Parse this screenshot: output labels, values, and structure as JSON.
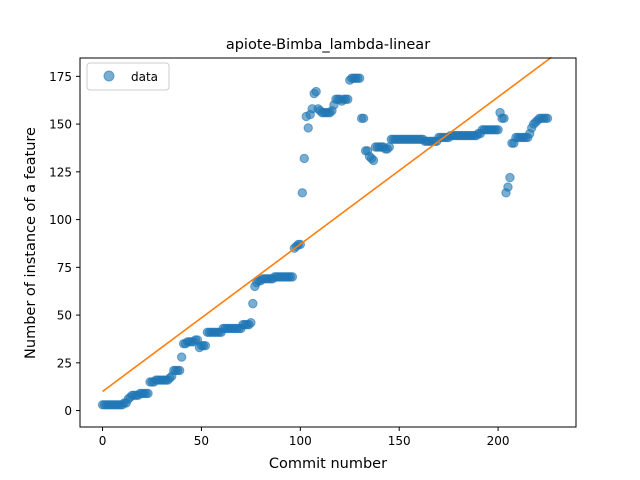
{
  "chart_data": {
    "type": "scatter",
    "title": "apiote-Bimba_lambda-linear",
    "xlabel": "Commit number",
    "ylabel": "Number of instance of a feature",
    "xlim": [
      -11.4,
      239.4
    ],
    "ylim": [
      -8.6,
      184.6
    ],
    "xticks": [
      0,
      50,
      100,
      150,
      200
    ],
    "yticks": [
      0,
      25,
      50,
      75,
      100,
      125,
      150,
      175
    ],
    "grid": false,
    "legend_position": "upper-left",
    "legend": [
      {
        "label": "data",
        "marker": "circle",
        "color": "#1f77b4"
      }
    ],
    "series": [
      {
        "name": "data",
        "kind": "scatter",
        "color": "#1f77b4",
        "alpha": 0.6,
        "points": [
          [
            0,
            3
          ],
          [
            1,
            3
          ],
          [
            2,
            3
          ],
          [
            3,
            3
          ],
          [
            4,
            3
          ],
          [
            5,
            3
          ],
          [
            6,
            3
          ],
          [
            7,
            3
          ],
          [
            8,
            3
          ],
          [
            9,
            3
          ],
          [
            10,
            3
          ],
          [
            11,
            4
          ],
          [
            12,
            4
          ],
          [
            13,
            6
          ],
          [
            14,
            7
          ],
          [
            15,
            8
          ],
          [
            16,
            8
          ],
          [
            17,
            8
          ],
          [
            18,
            8
          ],
          [
            19,
            9
          ],
          [
            20,
            9
          ],
          [
            21,
            9
          ],
          [
            22,
            9
          ],
          [
            23,
            9
          ],
          [
            24,
            15
          ],
          [
            25,
            15
          ],
          [
            26,
            15
          ],
          [
            27,
            16
          ],
          [
            28,
            16
          ],
          [
            29,
            16
          ],
          [
            30,
            16
          ],
          [
            31,
            16
          ],
          [
            32,
            16
          ],
          [
            33,
            16
          ],
          [
            34,
            17
          ],
          [
            35,
            18
          ],
          [
            36,
            21
          ],
          [
            37,
            21
          ],
          [
            38,
            21
          ],
          [
            39,
            21
          ],
          [
            40,
            28
          ],
          [
            41,
            35
          ],
          [
            42,
            35
          ],
          [
            43,
            36
          ],
          [
            44,
            36
          ],
          [
            45,
            36
          ],
          [
            46,
            36
          ],
          [
            47,
            37
          ],
          [
            48,
            37
          ],
          [
            49,
            33
          ],
          [
            50,
            34
          ],
          [
            51,
            34
          ],
          [
            52,
            34
          ],
          [
            53,
            41
          ],
          [
            54,
            41
          ],
          [
            55,
            41
          ],
          [
            56,
            41
          ],
          [
            57,
            41
          ],
          [
            58,
            41
          ],
          [
            59,
            41
          ],
          [
            60,
            41
          ],
          [
            61,
            43
          ],
          [
            62,
            43
          ],
          [
            63,
            43
          ],
          [
            64,
            43
          ],
          [
            65,
            43
          ],
          [
            66,
            43
          ],
          [
            67,
            43
          ],
          [
            68,
            43
          ],
          [
            69,
            43
          ],
          [
            70,
            43
          ],
          [
            71,
            45
          ],
          [
            72,
            45
          ],
          [
            73,
            45
          ],
          [
            74,
            45
          ],
          [
            75,
            46
          ],
          [
            76,
            56
          ],
          [
            77,
            65
          ],
          [
            78,
            67
          ],
          [
            79,
            68
          ],
          [
            80,
            68
          ],
          [
            81,
            69
          ],
          [
            82,
            69
          ],
          [
            83,
            69
          ],
          [
            84,
            69
          ],
          [
            85,
            69
          ],
          [
            86,
            69
          ],
          [
            87,
            70
          ],
          [
            88,
            70
          ],
          [
            89,
            70
          ],
          [
            90,
            70
          ],
          [
            91,
            70
          ],
          [
            92,
            70
          ],
          [
            93,
            70
          ],
          [
            94,
            70
          ],
          [
            95,
            70
          ],
          [
            96,
            70
          ],
          [
            97,
            85
          ],
          [
            98,
            86
          ],
          [
            99,
            87
          ],
          [
            100,
            87
          ],
          [
            101,
            114
          ],
          [
            102,
            132
          ],
          [
            103,
            154
          ],
          [
            104,
            148
          ],
          [
            105,
            155
          ],
          [
            106,
            158
          ],
          [
            107,
            166
          ],
          [
            108,
            167
          ],
          [
            109,
            158
          ],
          [
            110,
            157
          ],
          [
            111,
            156
          ],
          [
            112,
            156
          ],
          [
            113,
            156
          ],
          [
            114,
            156
          ],
          [
            115,
            156
          ],
          [
            116,
            157
          ],
          [
            117,
            160
          ],
          [
            118,
            163
          ],
          [
            119,
            163
          ],
          [
            120,
            163
          ],
          [
            121,
            162
          ],
          [
            122,
            163
          ],
          [
            123,
            163
          ],
          [
            124,
            163
          ],
          [
            125,
            173
          ],
          [
            126,
            174
          ],
          [
            127,
            174
          ],
          [
            128,
            174
          ],
          [
            129,
            174
          ],
          [
            130,
            174
          ],
          [
            131,
            153
          ],
          [
            132,
            153
          ],
          [
            133,
            136
          ],
          [
            134,
            136
          ],
          [
            135,
            133
          ],
          [
            136,
            132
          ],
          [
            137,
            131
          ],
          [
            138,
            138
          ],
          [
            139,
            138
          ],
          [
            140,
            138
          ],
          [
            141,
            138
          ],
          [
            142,
            138
          ],
          [
            143,
            137
          ],
          [
            144,
            137
          ],
          [
            145,
            138
          ],
          [
            146,
            142
          ],
          [
            147,
            142
          ],
          [
            148,
            142
          ],
          [
            149,
            142
          ],
          [
            150,
            142
          ],
          [
            151,
            142
          ],
          [
            152,
            142
          ],
          [
            153,
            142
          ],
          [
            154,
            142
          ],
          [
            155,
            142
          ],
          [
            156,
            142
          ],
          [
            157,
            142
          ],
          [
            158,
            142
          ],
          [
            159,
            142
          ],
          [
            160,
            142
          ],
          [
            161,
            142
          ],
          [
            162,
            142
          ],
          [
            163,
            141
          ],
          [
            164,
            141
          ],
          [
            165,
            141
          ],
          [
            166,
            141
          ],
          [
            167,
            141
          ],
          [
            168,
            141
          ],
          [
            169,
            141
          ],
          [
            170,
            143
          ],
          [
            171,
            143
          ],
          [
            172,
            143
          ],
          [
            173,
            143
          ],
          [
            174,
            143
          ],
          [
            175,
            143
          ],
          [
            176,
            144
          ],
          [
            177,
            144
          ],
          [
            178,
            144
          ],
          [
            179,
            144
          ],
          [
            180,
            144
          ],
          [
            181,
            144
          ],
          [
            182,
            144
          ],
          [
            183,
            144
          ],
          [
            184,
            144
          ],
          [
            185,
            144
          ],
          [
            186,
            144
          ],
          [
            187,
            144
          ],
          [
            188,
            144
          ],
          [
            189,
            144
          ],
          [
            190,
            145
          ],
          [
            191,
            145
          ],
          [
            192,
            147
          ],
          [
            193,
            147
          ],
          [
            194,
            147
          ],
          [
            195,
            147
          ],
          [
            196,
            147
          ],
          [
            197,
            147
          ],
          [
            198,
            147
          ],
          [
            199,
            147
          ],
          [
            200,
            147
          ],
          [
            201,
            156
          ],
          [
            202,
            153
          ],
          [
            203,
            153
          ],
          [
            204,
            114
          ],
          [
            205,
            117
          ],
          [
            206,
            122
          ],
          [
            207,
            140
          ],
          [
            208,
            140
          ],
          [
            209,
            143
          ],
          [
            210,
            143
          ],
          [
            211,
            143
          ],
          [
            212,
            143
          ],
          [
            213,
            143
          ],
          [
            214,
            143
          ],
          [
            215,
            143
          ],
          [
            216,
            145
          ],
          [
            217,
            148
          ],
          [
            218,
            150
          ],
          [
            219,
            151
          ],
          [
            220,
            152
          ],
          [
            221,
            153
          ],
          [
            222,
            153
          ],
          [
            223,
            153
          ],
          [
            224,
            153
          ],
          [
            225,
            153
          ]
        ]
      },
      {
        "name": "",
        "kind": "line",
        "color": "#ff7f0e",
        "points": [
          [
            0,
            10
          ],
          [
            227,
            185
          ]
        ]
      }
    ]
  }
}
